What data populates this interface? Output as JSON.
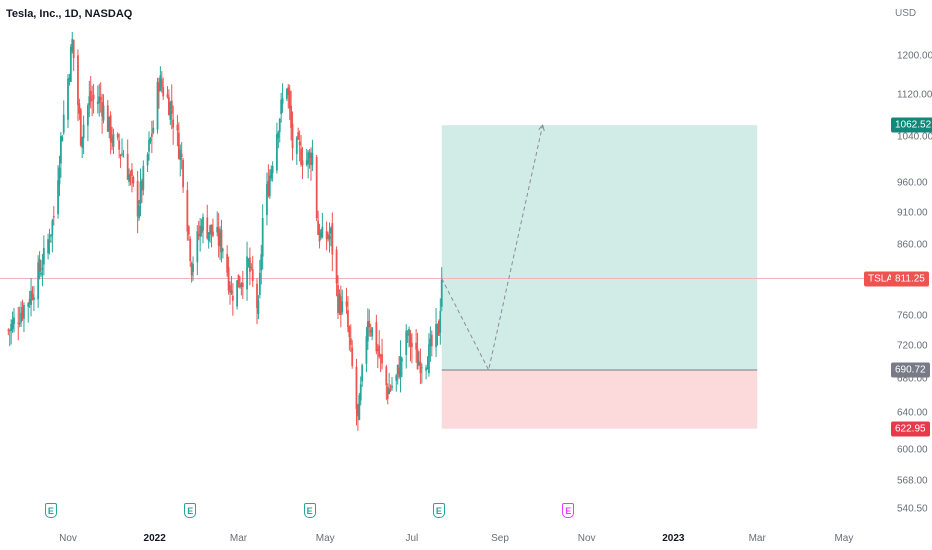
{
  "header": {
    "title": "Tesla, Inc., 1D, NASDAQ",
    "currency": "USD"
  },
  "colors": {
    "up": "#26a69a",
    "down": "#ef5350",
    "target_zone": "#d1ece6",
    "stop_zone": "#fcd9db",
    "target_tag": "#10897a",
    "entry_tag": "#787b86",
    "stop_tag": "#e8394a",
    "last_price_tag": "#ef5350",
    "earnings_reported": "#26a69a",
    "earnings_upcoming": "#e040fb"
  },
  "price_tags": {
    "target": "1062.52",
    "entry": "690.72",
    "stop": "622.95",
    "last": "811.25",
    "ticker": "TSLA"
  },
  "earnings_markers": [
    {
      "label": "E",
      "date": "2021-10-20",
      "status": "reported"
    },
    {
      "label": "E",
      "date": "2022-01-26",
      "status": "reported"
    },
    {
      "label": "E",
      "date": "2022-04-20",
      "status": "reported"
    },
    {
      "label": "E",
      "date": "2022-07-20",
      "status": "reported"
    },
    {
      "label": "E",
      "date": "2022-10-19",
      "status": "upcoming"
    }
  ],
  "chart_data": {
    "type": "candlestick",
    "title": "Tesla, Inc., 1D, NASDAQ",
    "y_unit": "USD",
    "y_scale": "log",
    "ylim": [
      525,
      1400
    ],
    "y_ticks": [
      "1200.00",
      "1120.00",
      "1040.00",
      "960.00",
      "910.00",
      "860.00",
      "760.00",
      "720.00",
      "680.00",
      "640.00",
      "600.00",
      "568.00",
      "540.50"
    ],
    "x_ticks": [
      "Nov",
      "2022",
      "Mar",
      "May",
      "Jul",
      "Sep",
      "Nov",
      "2023",
      "Mar",
      "May"
    ],
    "x_range": [
      "2021-09-20",
      "2023-05-20"
    ],
    "last_price": 811.25,
    "position": {
      "type": "long",
      "entry": 690.72,
      "target": 1062.52,
      "stop": 622.95,
      "start": "2022-07-22",
      "end": "2023-03-01"
    },
    "projection": [
      {
        "date": "2022-07-22",
        "price": 811.25
      },
      {
        "date": "2022-08-24",
        "price": 690.72
      },
      {
        "date": "2022-10-01",
        "price": 1062.52
      }
    ],
    "ohlc_anchors": [
      [
        "2021-09-20",
        740
      ],
      [
        "2021-10-05",
        785
      ],
      [
        "2021-10-15",
        840
      ],
      [
        "2021-10-22",
        905
      ],
      [
        "2021-10-27",
        1035
      ],
      [
        "2021-11-04",
        1230
      ],
      [
        "2021-11-10",
        1045
      ],
      [
        "2021-11-16",
        1110
      ],
      [
        "2021-11-24",
        1110
      ],
      [
        "2021-12-03",
        1030
      ],
      [
        "2021-12-10",
        1010
      ],
      [
        "2021-12-20",
        920
      ],
      [
        "2021-12-31",
        1060
      ],
      [
        "2022-01-04",
        1150
      ],
      [
        "2022-01-12",
        1100
      ],
      [
        "2022-01-20",
        1000
      ],
      [
        "2022-01-27",
        830
      ],
      [
        "2022-02-03",
        895
      ],
      [
        "2022-02-10",
        880
      ],
      [
        "2022-02-18",
        860
      ],
      [
        "2022-02-24",
        790
      ],
      [
        "2022-03-08",
        830
      ],
      [
        "2022-03-15",
        765
      ],
      [
        "2022-03-18",
        900
      ],
      [
        "2022-03-29",
        1070
      ],
      [
        "2022-04-04",
        1145
      ],
      [
        "2022-04-08",
        1025
      ],
      [
        "2022-04-18",
        1000
      ],
      [
        "2022-04-22",
        1010
      ],
      [
        "2022-04-26",
        880
      ],
      [
        "2022-04-29",
        870
      ],
      [
        "2022-05-05",
        875
      ],
      [
        "2022-05-10",
        780
      ],
      [
        "2022-05-16",
        760
      ],
      [
        "2022-05-24",
        630
      ],
      [
        "2022-05-31",
        760
      ],
      [
        "2022-06-07",
        715
      ],
      [
        "2022-06-14",
        665
      ],
      [
        "2022-06-20",
        680
      ],
      [
        "2022-06-28",
        735
      ],
      [
        "2022-07-05",
        700
      ],
      [
        "2022-07-13",
        710
      ],
      [
        "2022-07-20",
        742
      ],
      [
        "2022-07-22",
        815
      ]
    ]
  }
}
